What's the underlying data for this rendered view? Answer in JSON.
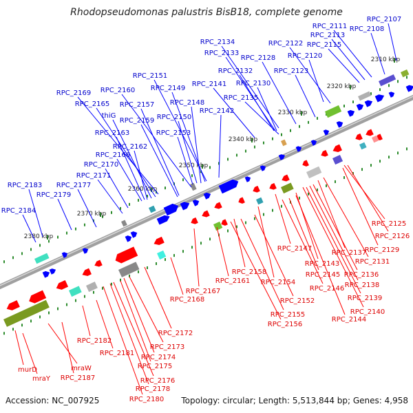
{
  "title": "Rhodopseudomonas palustris BisB18, complete genome",
  "accession": "Accession: NC_007925",
  "topology": "Topology: circular; Length: 5,513,844 bp; Genes: 4,958",
  "colors": {
    "forward": "#0000ff",
    "reverse": "#ff0000",
    "forward_label": "#0000cc",
    "reverse_label": "#dd0000",
    "backbone": "#888888",
    "tick": "#2a8a2a"
  },
  "ticks": [
    {
      "label": "2310 kbp"
    },
    {
      "label": "2320 kbp"
    },
    {
      "label": "2330 kbp"
    },
    {
      "label": "2340 kbp"
    },
    {
      "label": "2350 kbp"
    },
    {
      "label": "2360 kbp"
    },
    {
      "label": "2370 kbp"
    },
    {
      "label": "2380 kbp"
    }
  ],
  "forward_labels": [
    {
      "text": "RPC_2107"
    },
    {
      "text": "RPC_2108"
    },
    {
      "text": "RPC_2111"
    },
    {
      "text": "RPC_2113"
    },
    {
      "text": "RPC_2115"
    },
    {
      "text": "RPC_2122"
    },
    {
      "text": "RPC_2120"
    },
    {
      "text": "RPC_2123"
    },
    {
      "text": "RPC_2128"
    },
    {
      "text": "RPC_2134"
    },
    {
      "text": "RPC_2133"
    },
    {
      "text": "RPC_2132"
    },
    {
      "text": "RPC_2130"
    },
    {
      "text": "RPC_2141"
    },
    {
      "text": "RPC_2135"
    },
    {
      "text": "RPC_2151"
    },
    {
      "text": "RPC_2149"
    },
    {
      "text": "RPC_2148"
    },
    {
      "text": "RPC_2142"
    },
    {
      "text": "RPC_2160"
    },
    {
      "text": "RPC_2169"
    },
    {
      "text": "RPC_2157"
    },
    {
      "text": "RPC_2165"
    },
    {
      "text": "RPC_2150"
    },
    {
      "text": "thiG"
    },
    {
      "text": "RPC_2159"
    },
    {
      "text": "RPC_2153"
    },
    {
      "text": "RPC_2163"
    },
    {
      "text": "RPC_2162"
    },
    {
      "text": "RPC_2166"
    },
    {
      "text": "RPC_2170"
    },
    {
      "text": "RPC_2171"
    },
    {
      "text": "RPC_2183"
    },
    {
      "text": "RPC_2177"
    },
    {
      "text": "RPC_2179"
    },
    {
      "text": "RPC_2184"
    }
  ],
  "reverse_labels": [
    {
      "text": "RPC_2125"
    },
    {
      "text": "RPC_2126"
    },
    {
      "text": "RPC_2129"
    },
    {
      "text": "RPC_2137"
    },
    {
      "text": "RPC_2147"
    },
    {
      "text": "RPC_2131"
    },
    {
      "text": "RPC_2143"
    },
    {
      "text": "RPC_2136"
    },
    {
      "text": "RPC_2145"
    },
    {
      "text": "RPC_2138"
    },
    {
      "text": "RPC_2158"
    },
    {
      "text": "RPC_2146"
    },
    {
      "text": "RPC_2161"
    },
    {
      "text": "RPC_2154"
    },
    {
      "text": "RPC_2139"
    },
    {
      "text": "RPC_2167"
    },
    {
      "text": "RPC_2152"
    },
    {
      "text": "RPC_2168"
    },
    {
      "text": "RPC_2140"
    },
    {
      "text": "RPC_2155"
    },
    {
      "text": "RPC_2144"
    },
    {
      "text": "RPC_2156"
    },
    {
      "text": "RPC_2172"
    },
    {
      "text": "RPC_2182"
    },
    {
      "text": "RPC_2173"
    },
    {
      "text": "RPC_2181"
    },
    {
      "text": "RPC_2174"
    },
    {
      "text": "RPC_2175"
    },
    {
      "text": "RPC_2176"
    },
    {
      "text": "RPC_2178"
    },
    {
      "text": "RPC_2180"
    },
    {
      "text": "murD"
    },
    {
      "text": "mraW"
    },
    {
      "text": "mraY"
    },
    {
      "text": "RPC_2187"
    }
  ]
}
